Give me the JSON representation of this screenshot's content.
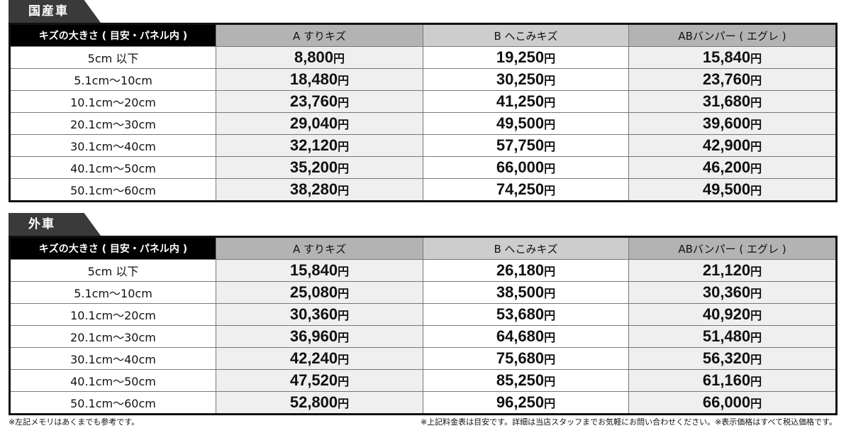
{
  "headers": {
    "size": "キズの大きさ ( 目安・パネル内 )",
    "a": "A すりキズ",
    "b": "B へこみキズ",
    "c": "ABバンパー ( エグレ )"
  },
  "yen": "円",
  "sections": [
    {
      "title": "国産車",
      "rows": [
        {
          "size": "5cm 以下",
          "a": "8,800",
          "b": "19,250",
          "c": "15,840"
        },
        {
          "size": "5.1cm〜10cm",
          "a": "18,480",
          "b": "30,250",
          "c": "23,760"
        },
        {
          "size": "10.1cm〜20cm",
          "a": "23,760",
          "b": "41,250",
          "c": "31,680"
        },
        {
          "size": "20.1cm〜30cm",
          "a": "29,040",
          "b": "49,500",
          "c": "39,600"
        },
        {
          "size": "30.1cm〜40cm",
          "a": "32,120",
          "b": "57,750",
          "c": "42,900"
        },
        {
          "size": "40.1cm〜50cm",
          "a": "35,200",
          "b": "66,000",
          "c": "46,200"
        },
        {
          "size": "50.1cm〜60cm",
          "a": "38,280",
          "b": "74,250",
          "c": "49,500"
        }
      ]
    },
    {
      "title": "外車",
      "rows": [
        {
          "size": "5cm 以下",
          "a": "15,840",
          "b": "26,180",
          "c": "21,120"
        },
        {
          "size": "5.1cm〜10cm",
          "a": "25,080",
          "b": "38,500",
          "c": "30,360"
        },
        {
          "size": "10.1cm〜20cm",
          "a": "30,360",
          "b": "53,680",
          "c": "40,920"
        },
        {
          "size": "20.1cm〜30cm",
          "a": "36,960",
          "b": "64,680",
          "c": "51,480"
        },
        {
          "size": "30.1cm〜40cm",
          "a": "42,240",
          "b": "75,680",
          "c": "56,320"
        },
        {
          "size": "40.1cm〜50cm",
          "a": "47,520",
          "b": "85,250",
          "c": "61,160"
        },
        {
          "size": "50.1cm〜60cm",
          "a": "52,800",
          "b": "96,250",
          "c": "66,000"
        }
      ]
    }
  ],
  "notes": {
    "left": "※左記メモリはあくまでも参考です。",
    "right": "※上記料金表は目安です。詳細は当店スタッフまでお気軽にお問い合わせください。※表示価格はすべて税込価格です。"
  }
}
